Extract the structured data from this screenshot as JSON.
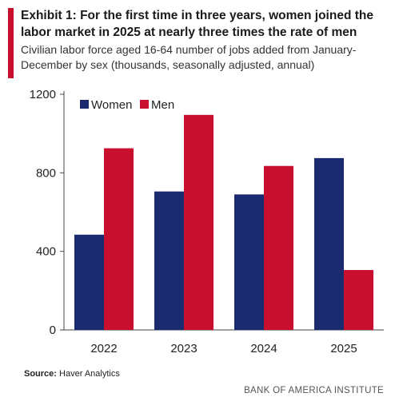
{
  "header": {
    "title": "Exhibit 1: For the first time in three years, women joined the labor market in 2025 at nearly three times the rate of men",
    "subtitle": "Civilian labor force aged 16-64 number of jobs added from January-December by sex (thousands, seasonally adjusted, annual)"
  },
  "footer": {
    "source_label": "Source:",
    "source_text": "Haver Analytics",
    "brand": "BANK OF AMERICA INSTITUTE"
  },
  "colors": {
    "women": "#1b2a6e",
    "men": "#c8102e",
    "accent": "#c8102e"
  },
  "chart_data": {
    "type": "bar",
    "categories": [
      "2022",
      "2023",
      "2024",
      "2025"
    ],
    "series": [
      {
        "name": "Women",
        "values": [
          485,
          705,
          690,
          875
        ]
      },
      {
        "name": "Men",
        "values": [
          925,
          1095,
          835,
          305
        ]
      }
    ],
    "yticks": [
      "0",
      "400",
      "800",
      "1200"
    ],
    "ylim": [
      0,
      1200
    ],
    "legend": "top-left",
    "grid": false
  }
}
